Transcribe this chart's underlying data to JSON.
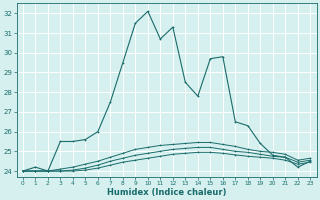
{
  "xlabel": "Humidex (Indice chaleur)",
  "xlim": [
    -0.5,
    23.5
  ],
  "ylim": [
    23.7,
    32.5
  ],
  "yticks": [
    24,
    25,
    26,
    27,
    28,
    29,
    30,
    31,
    32
  ],
  "xticks": [
    0,
    1,
    2,
    3,
    4,
    5,
    6,
    7,
    8,
    9,
    10,
    11,
    12,
    13,
    14,
    15,
    16,
    17,
    18,
    19,
    20,
    21,
    22,
    23
  ],
  "bg_color": "#d5f0ee",
  "plot_bg": "#d5f0ee",
  "grid_color": "#ffffff",
  "line_color": "#1a6b6b",
  "lines": [
    [
      24.0,
      24.2,
      24.0,
      25.5,
      25.5,
      25.6,
      26.0,
      27.5,
      29.5,
      31.5,
      32.1,
      30.7,
      31.3,
      28.5,
      27.8,
      29.7,
      29.8,
      26.5,
      26.3,
      25.4,
      24.8,
      24.7,
      24.2,
      24.5
    ],
    [
      24.0,
      24.0,
      24.0,
      24.1,
      24.2,
      24.35,
      24.5,
      24.7,
      24.9,
      25.1,
      25.2,
      25.3,
      25.35,
      25.4,
      25.45,
      25.45,
      25.35,
      25.25,
      25.1,
      25.0,
      24.95,
      24.85,
      24.55,
      24.65
    ],
    [
      24.0,
      24.0,
      24.0,
      24.0,
      24.05,
      24.15,
      24.3,
      24.5,
      24.65,
      24.8,
      24.9,
      25.0,
      25.1,
      25.15,
      25.2,
      25.2,
      25.1,
      25.0,
      24.95,
      24.85,
      24.75,
      24.7,
      24.45,
      24.55
    ],
    [
      24.0,
      24.0,
      24.0,
      24.0,
      24.0,
      24.05,
      24.15,
      24.3,
      24.45,
      24.55,
      24.65,
      24.75,
      24.85,
      24.9,
      24.95,
      24.95,
      24.9,
      24.82,
      24.75,
      24.7,
      24.65,
      24.55,
      24.35,
      24.45
    ]
  ]
}
